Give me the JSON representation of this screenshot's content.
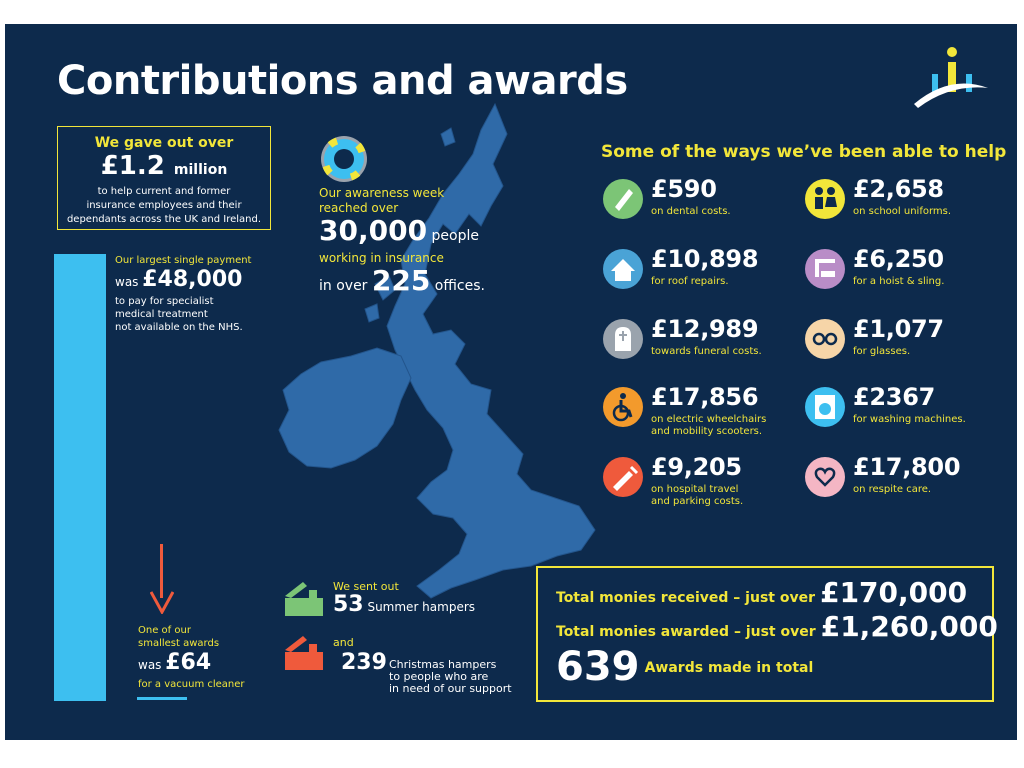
{
  "title": "Contributions and awards",
  "gave_out": {
    "line1": "We gave out over",
    "amount": "£1.2",
    "unit": "million",
    "desc1": "to help current and former",
    "desc2": "insurance employees and their",
    "desc3": "dependants across the UK and Ireland."
  },
  "largest": {
    "line1": "Our largest single payment",
    "was": "was",
    "amount": "£48,000",
    "desc1": "to pay for specialist",
    "desc2": "medical treatment",
    "desc3": "not available on the NHS."
  },
  "smallest": {
    "line1": "One of our",
    "line2": "smallest awards",
    "was": "was",
    "amount": "£64",
    "desc": "for a vacuum cleaner"
  },
  "awareness": {
    "line1": "Our awareness week",
    "line2": "reached over",
    "count": "30,000",
    "people": "people",
    "line3": "working in insurance",
    "in_over": "in over",
    "offices_count": "225",
    "offices": "offices."
  },
  "ways_title": "Some of the ways we’ve been able to help",
  "ways": [
    {
      "amount": "£590",
      "caption1": "on dental costs.",
      "caption2": "",
      "icon": "toothbrush-icon",
      "color": "#7cc576"
    },
    {
      "amount": "£2,658",
      "caption1": "on school uniforms.",
      "caption2": "",
      "icon": "children-icon",
      "color": "#f2e63a"
    },
    {
      "amount": "£10,898",
      "caption1": "for roof repairs.",
      "caption2": "",
      "icon": "house-icon",
      "color": "#4aa3d6"
    },
    {
      "amount": "£6,250",
      "caption1": "for a hoist & sling.",
      "caption2": "",
      "icon": "hoist-icon",
      "color": "#b98dc7"
    },
    {
      "amount": "£12,989",
      "caption1": "towards funeral costs.",
      "caption2": "",
      "icon": "gravestone-icon",
      "color": "#9aa3ad"
    },
    {
      "amount": "£1,077",
      "caption1": "for glasses.",
      "caption2": "",
      "icon": "glasses-icon",
      "color": "#f6d5a8"
    },
    {
      "amount": "£17,856",
      "caption1": "on electric wheelchairs",
      "caption2": "and mobility scooters.",
      "icon": "wheelchair-icon",
      "color": "#f39a2c"
    },
    {
      "amount": "£2367",
      "caption1": "for washing machines.",
      "caption2": "",
      "icon": "washing-machine-icon",
      "color": "#3dbff0"
    },
    {
      "amount": "£9,205",
      "caption1": "on hospital travel",
      "caption2": "and parking costs.",
      "icon": "syringe-icon",
      "color": "#ef5a3c"
    },
    {
      "amount": "£17,800",
      "caption1": "on respite care.",
      "caption2": "",
      "icon": "heart-hands-icon",
      "color": "#f4b6c4"
    }
  ],
  "hampers": {
    "sent_out": "We sent out",
    "summer_count": "53",
    "summer_label": "Summer hampers",
    "and": "and",
    "christmas_count": "239",
    "christmas_label1": "Christmas hampers",
    "christmas_label2": "to people who are",
    "christmas_label3": "in need of our support"
  },
  "totals": {
    "received_label": "Total monies received – just over",
    "received_amount": "£170,000",
    "awarded_label": "Total monies awarded – just over",
    "awarded_amount": "£1,260,000",
    "awards_count": "639",
    "awards_label": "Awards made in total"
  },
  "colors": {
    "background": "#0d2a4c",
    "accent_yellow": "#f2e63a",
    "accent_blue": "#3dbff0",
    "map": "#2f6aa8"
  }
}
